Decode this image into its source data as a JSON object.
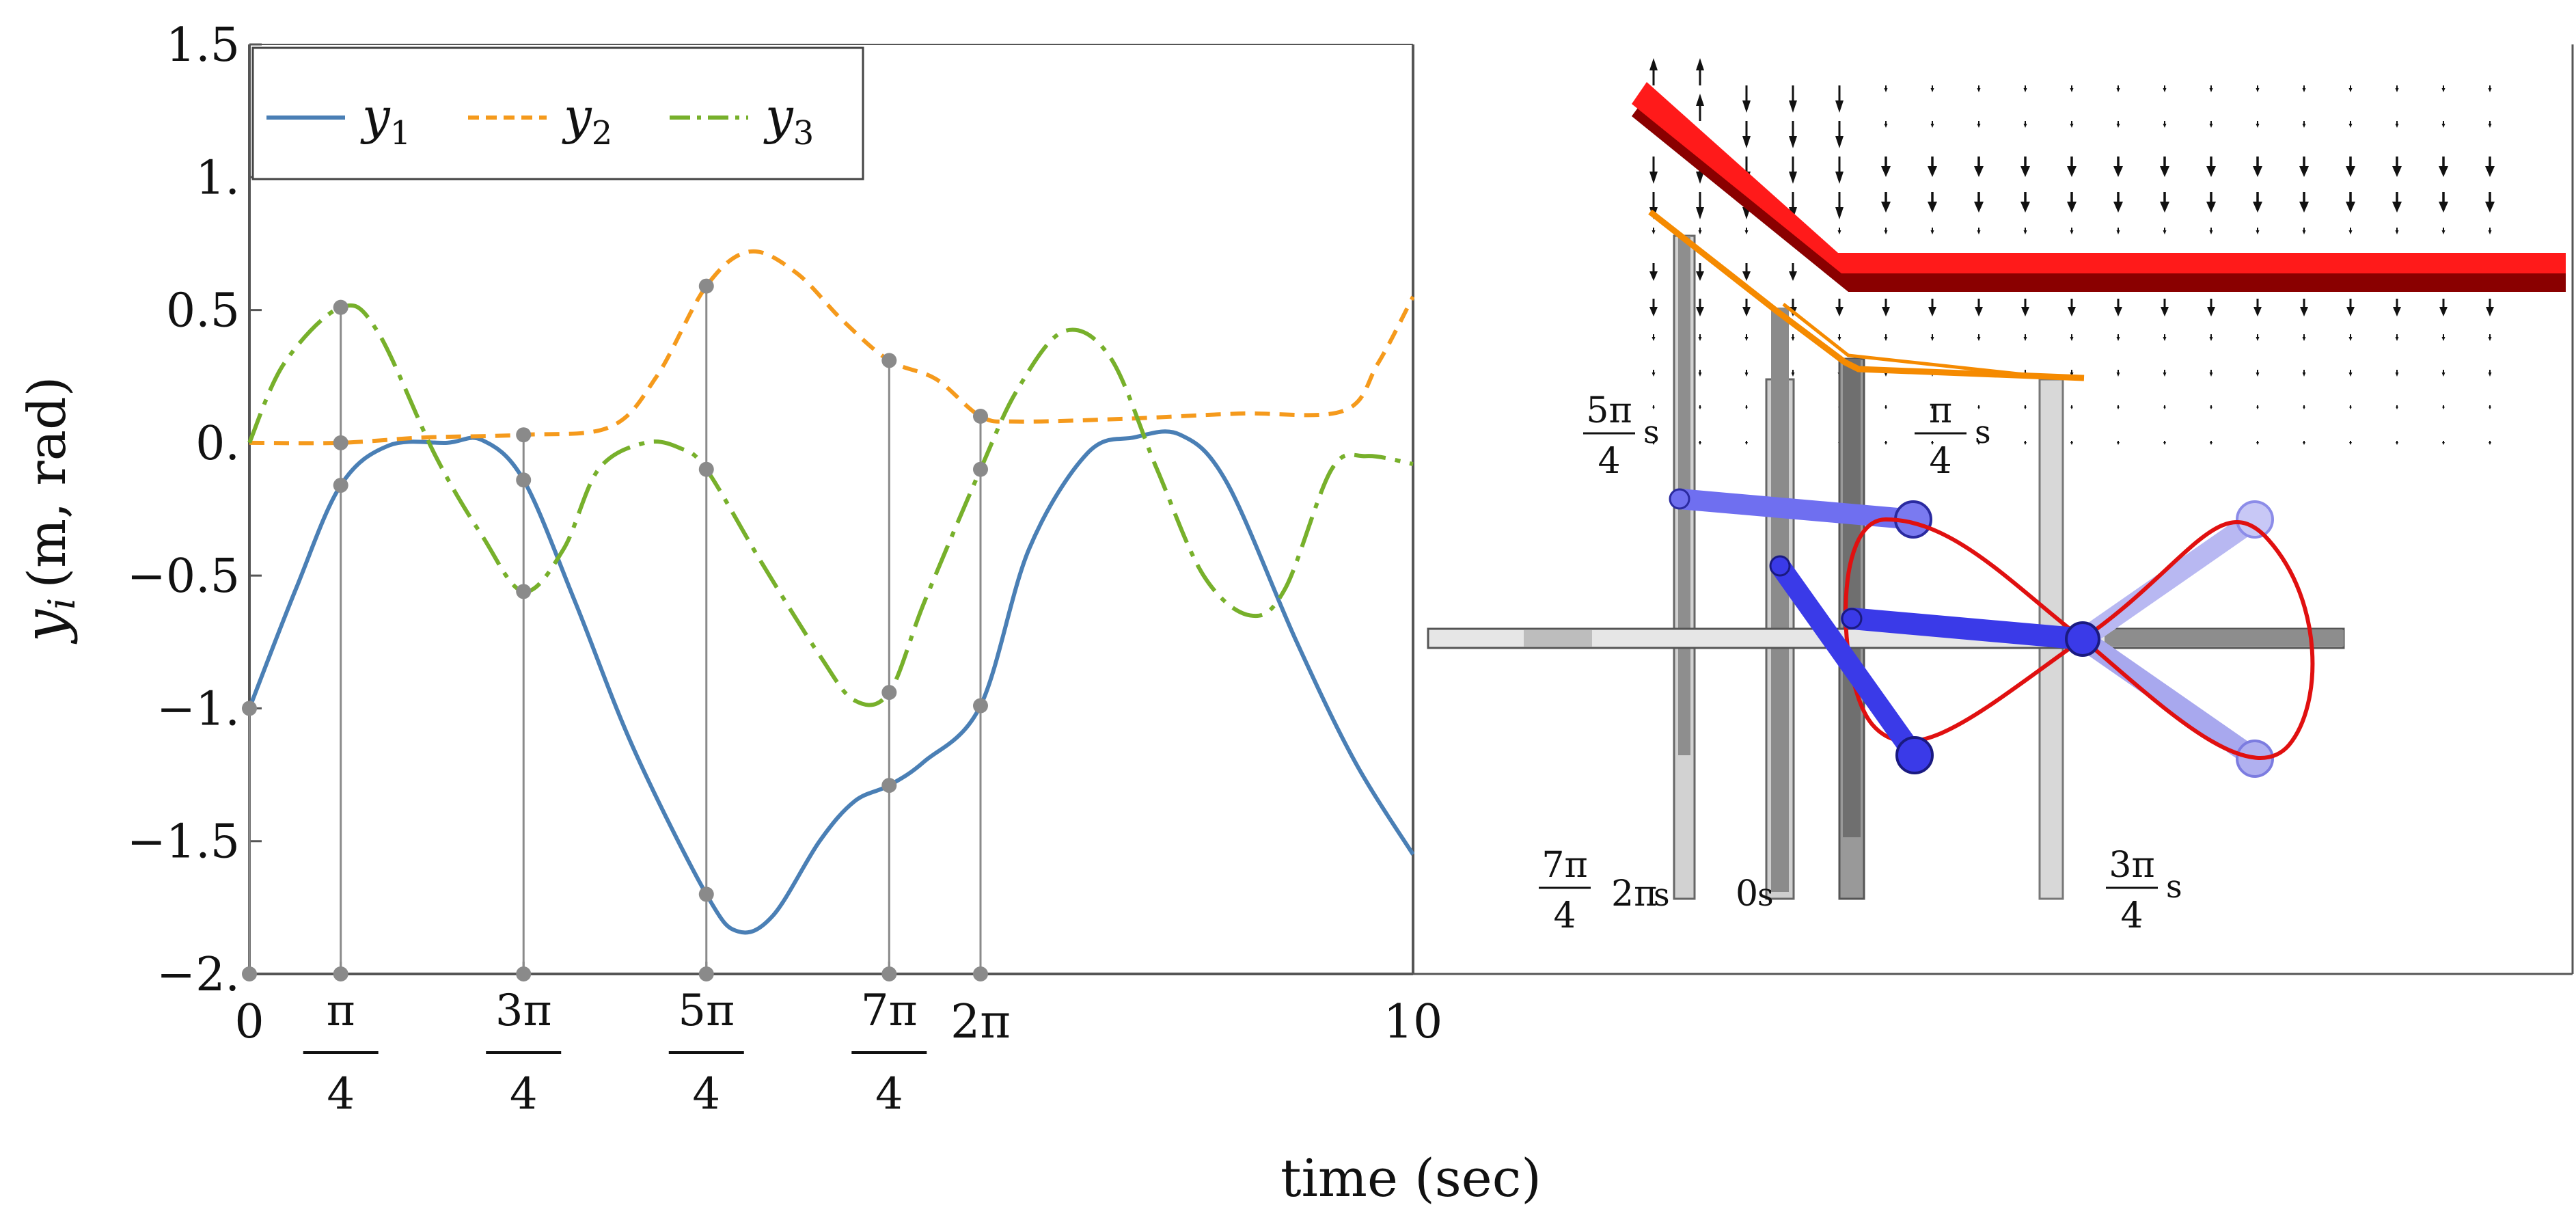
{
  "chart_data": {
    "type": "line",
    "xlabel": "time (sec)",
    "ylabel_main": "y",
    "ylabel_sub": "i",
    "ylabel_units": "(m, rad)",
    "xlim": [
      0,
      10
    ],
    "ylim": [
      -2,
      1.5
    ],
    "y_ticks": [
      {
        "v": 1.5,
        "label": "1.5"
      },
      {
        "v": 1.0,
        "label": "1."
      },
      {
        "v": 0.5,
        "label": "0.5"
      },
      {
        "v": 0.0,
        "label": "0."
      },
      {
        "v": -0.5,
        "label": "−0.5"
      },
      {
        "v": -1.0,
        "label": "−1."
      },
      {
        "v": -1.5,
        "label": "−1.5"
      },
      {
        "v": -2.0,
        "label": "−2."
      }
    ],
    "x_ticks": [
      {
        "v": 0,
        "label": "0"
      },
      {
        "v": 0.785,
        "num": "π",
        "den": "4"
      },
      {
        "v": 2.356,
        "num": "3π",
        "den": "4"
      },
      {
        "v": 3.927,
        "num": "5π",
        "den": "4"
      },
      {
        "v": 5.498,
        "num": "7π",
        "den": "4"
      },
      {
        "v": 6.283,
        "label": "2π"
      },
      {
        "v": 10,
        "label": "10"
      }
    ],
    "legend_position": "top-left",
    "series": [
      {
        "name": "y",
        "sub": "1",
        "color": "#4a7fb5",
        "style": "solid",
        "points": [
          [
            0,
            -1.0
          ],
          [
            0.4,
            -0.55
          ],
          [
            0.785,
            -0.16
          ],
          [
            1.2,
            -0.01
          ],
          [
            1.7,
            0.0
          ],
          [
            2.0,
            0.01
          ],
          [
            2.356,
            -0.14
          ],
          [
            2.8,
            -0.6
          ],
          [
            3.3,
            -1.15
          ],
          [
            3.927,
            -1.7
          ],
          [
            4.2,
            -1.84
          ],
          [
            4.5,
            -1.78
          ],
          [
            4.9,
            -1.5
          ],
          [
            5.2,
            -1.35
          ],
          [
            5.498,
            -1.29
          ],
          [
            5.8,
            -1.2
          ],
          [
            6.283,
            -0.99
          ],
          [
            6.7,
            -0.4
          ],
          [
            7.2,
            -0.04
          ],
          [
            7.6,
            0.02
          ],
          [
            8.0,
            0.03
          ],
          [
            8.4,
            -0.15
          ],
          [
            9.0,
            -0.75
          ],
          [
            9.5,
            -1.2
          ],
          [
            10,
            -1.55
          ]
        ]
      },
      {
        "name": "y",
        "sub": "2",
        "color": "#f59a1c",
        "style": "dashed",
        "points": [
          [
            0,
            0.0
          ],
          [
            0.785,
            0.0
          ],
          [
            1.5,
            0.02
          ],
          [
            2.356,
            0.03
          ],
          [
            3.1,
            0.06
          ],
          [
            3.5,
            0.25
          ],
          [
            3.927,
            0.59
          ],
          [
            4.3,
            0.72
          ],
          [
            4.7,
            0.64
          ],
          [
            5.1,
            0.46
          ],
          [
            5.498,
            0.31
          ],
          [
            5.9,
            0.24
          ],
          [
            6.283,
            0.1
          ],
          [
            6.6,
            0.08
          ],
          [
            7.5,
            0.09
          ],
          [
            8.5,
            0.11
          ],
          [
            9.4,
            0.12
          ],
          [
            9.7,
            0.3
          ],
          [
            10,
            0.55
          ]
        ]
      },
      {
        "name": "y",
        "sub": "3",
        "color": "#77b02b",
        "style": "dashdot",
        "points": [
          [
            0,
            0.0
          ],
          [
            0.3,
            0.3
          ],
          [
            0.785,
            0.51
          ],
          [
            1.1,
            0.42
          ],
          [
            1.6,
            -0.05
          ],
          [
            2.0,
            -0.35
          ],
          [
            2.356,
            -0.56
          ],
          [
            2.7,
            -0.4
          ],
          [
            3.0,
            -0.1
          ],
          [
            3.4,
            0.0
          ],
          [
            3.7,
            -0.02
          ],
          [
            3.927,
            -0.1
          ],
          [
            4.4,
            -0.45
          ],
          [
            4.9,
            -0.8
          ],
          [
            5.2,
            -0.97
          ],
          [
            5.498,
            -0.94
          ],
          [
            5.8,
            -0.6
          ],
          [
            6.283,
            -0.1
          ],
          [
            6.6,
            0.2
          ],
          [
            7.0,
            0.42
          ],
          [
            7.4,
            0.32
          ],
          [
            7.8,
            -0.1
          ],
          [
            8.2,
            -0.5
          ],
          [
            8.6,
            -0.65
          ],
          [
            8.9,
            -0.55
          ],
          [
            9.3,
            -0.1
          ],
          [
            9.6,
            -0.05
          ],
          [
            10,
            -0.08
          ]
        ]
      }
    ],
    "markers": [
      {
        "x": 0,
        "ys": [
          -1.0,
          -2.0
        ]
      },
      {
        "x": 0.785,
        "ys": [
          0.51,
          0.0,
          -0.16,
          -2.0
        ]
      },
      {
        "x": 2.356,
        "ys": [
          0.03,
          -0.14,
          -0.56,
          -2.0
        ]
      },
      {
        "x": 3.927,
        "ys": [
          0.59,
          -0.1,
          -1.7,
          -2.0
        ]
      },
      {
        "x": 5.498,
        "ys": [
          0.31,
          -0.94,
          -1.29,
          -2.0
        ]
      },
      {
        "x": 6.283,
        "ys": [
          0.1,
          -0.1,
          -0.99,
          -2.0
        ]
      }
    ]
  },
  "inset": {
    "annotations": [
      {
        "id": "5pi4",
        "num": "5π",
        "den": "4",
        "unit": "s"
      },
      {
        "id": "pi4",
        "num": "π",
        "den": "4",
        "unit": "s"
      },
      {
        "id": "7pi4",
        "num": "7π",
        "den": "4",
        "unit": ""
      },
      {
        "id": "2pi",
        "label": "2π",
        "unit": "s"
      },
      {
        "id": "0s",
        "label": "0",
        "unit": "s"
      },
      {
        "id": "3pi4",
        "num": "3π",
        "den": "4",
        "unit": "s"
      }
    ],
    "colors": {
      "beam": "#ff0000",
      "beam_shadow": "#8a0000",
      "orange_path": "#f58a00",
      "arm": "#3a3ae8",
      "arm_faded": "#9c9cf0",
      "trajectory": "#e01010",
      "rails": "#9a9a9a"
    }
  }
}
